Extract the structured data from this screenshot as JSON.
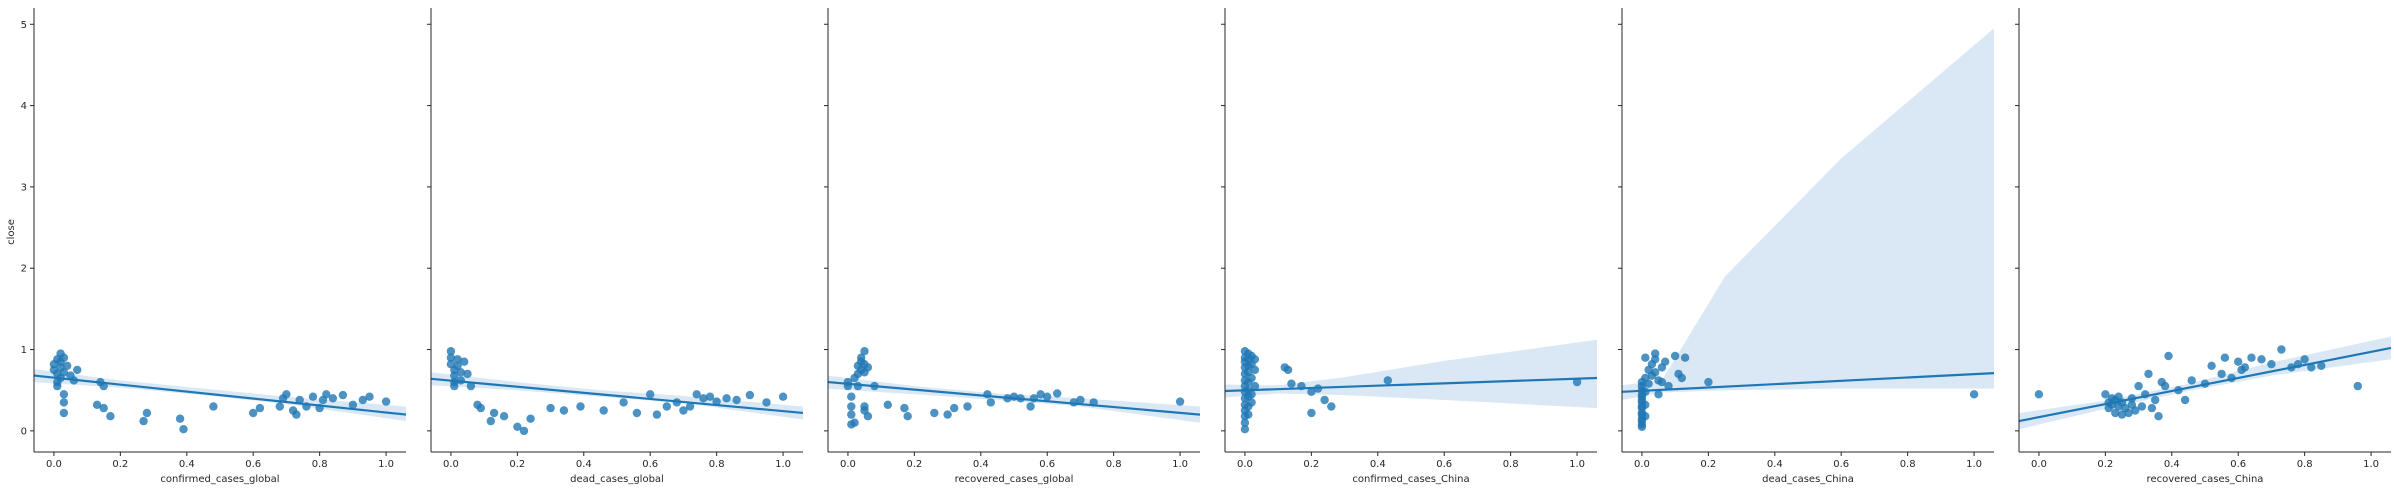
{
  "ylabel": "close",
  "colors": {
    "scatter": "#1f77b4",
    "line": "#1f77b4",
    "band": "#c6dbef"
  },
  "chart_data": [
    {
      "type": "scatter",
      "xlabel": "confirmed_cases_global",
      "xlim": [
        -0.06,
        1.06
      ],
      "ylim": [
        -0.26,
        5.2
      ],
      "xticks": [
        "0.0",
        "0.2",
        "0.4",
        "0.6",
        "0.8",
        "1.0"
      ],
      "yticks": [
        "0",
        "1",
        "2",
        "3",
        "4",
        "5"
      ],
      "points": [
        [
          0.0,
          0.82
        ],
        [
          0.0,
          0.75
        ],
        [
          0.01,
          0.88
        ],
        [
          0.01,
          0.7
        ],
        [
          0.01,
          0.6
        ],
        [
          0.01,
          0.55
        ],
        [
          0.02,
          0.95
        ],
        [
          0.02,
          0.85
        ],
        [
          0.02,
          0.78
        ],
        [
          0.02,
          0.65
        ],
        [
          0.03,
          0.9
        ],
        [
          0.03,
          0.72
        ],
        [
          0.03,
          0.45
        ],
        [
          0.03,
          0.35
        ],
        [
          0.03,
          0.22
        ],
        [
          0.04,
          0.8
        ],
        [
          0.05,
          0.68
        ],
        [
          0.06,
          0.62
        ],
        [
          0.07,
          0.75
        ],
        [
          0.14,
          0.6
        ],
        [
          0.15,
          0.55
        ],
        [
          0.13,
          0.32
        ],
        [
          0.15,
          0.28
        ],
        [
          0.17,
          0.18
        ],
        [
          0.27,
          0.12
        ],
        [
          0.28,
          0.22
        ],
        [
          0.38,
          0.15
        ],
        [
          0.39,
          0.02
        ],
        [
          0.48,
          0.3
        ],
        [
          0.6,
          0.22
        ],
        [
          0.62,
          0.28
        ],
        [
          0.68,
          0.3
        ],
        [
          0.69,
          0.4
        ],
        [
          0.7,
          0.45
        ],
        [
          0.72,
          0.25
        ],
        [
          0.73,
          0.2
        ],
        [
          0.74,
          0.38
        ],
        [
          0.76,
          0.3
        ],
        [
          0.78,
          0.42
        ],
        [
          0.8,
          0.28
        ],
        [
          0.81,
          0.38
        ],
        [
          0.82,
          0.45
        ],
        [
          0.84,
          0.4
        ],
        [
          0.87,
          0.44
        ],
        [
          0.9,
          0.32
        ],
        [
          0.93,
          0.38
        ],
        [
          0.95,
          0.42
        ],
        [
          1.0,
          0.36
        ]
      ],
      "regression": {
        "x": [
          -0.06,
          1.06
        ],
        "y": [
          0.68,
          0.2
        ]
      },
      "band": [
        [
          -0.06,
          0.6,
          0.76
        ],
        [
          0.2,
          0.53,
          0.62
        ],
        [
          0.45,
          0.44,
          0.52
        ],
        [
          0.7,
          0.33,
          0.42
        ],
        [
          1.06,
          0.12,
          0.3
        ]
      ]
    },
    {
      "type": "scatter",
      "xlabel": "dead_cases_global",
      "xlim": [
        -0.06,
        1.06
      ],
      "ylim": [
        -0.26,
        5.2
      ],
      "xticks": [
        "0.0",
        "0.2",
        "0.4",
        "0.6",
        "0.8",
        "1.0"
      ],
      "yticks": [
        "0",
        "1",
        "2",
        "3",
        "4",
        "5"
      ],
      "points": [
        [
          0.0,
          0.98
        ],
        [
          0.0,
          0.9
        ],
        [
          0.0,
          0.82
        ],
        [
          0.01,
          0.75
        ],
        [
          0.01,
          0.68
        ],
        [
          0.01,
          0.6
        ],
        [
          0.01,
          0.55
        ],
        [
          0.02,
          0.88
        ],
        [
          0.02,
          0.8
        ],
        [
          0.03,
          0.72
        ],
        [
          0.03,
          0.62
        ],
        [
          0.04,
          0.85
        ],
        [
          0.05,
          0.7
        ],
        [
          0.06,
          0.55
        ],
        [
          0.08,
          0.32
        ],
        [
          0.09,
          0.28
        ],
        [
          0.12,
          0.12
        ],
        [
          0.13,
          0.22
        ],
        [
          0.16,
          0.18
        ],
        [
          0.2,
          0.05
        ],
        [
          0.22,
          0.0
        ],
        [
          0.24,
          0.15
        ],
        [
          0.3,
          0.28
        ],
        [
          0.34,
          0.25
        ],
        [
          0.39,
          0.3
        ],
        [
          0.46,
          0.25
        ],
        [
          0.52,
          0.35
        ],
        [
          0.56,
          0.22
        ],
        [
          0.6,
          0.45
        ],
        [
          0.62,
          0.2
        ],
        [
          0.65,
          0.3
        ],
        [
          0.68,
          0.35
        ],
        [
          0.7,
          0.25
        ],
        [
          0.72,
          0.3
        ],
        [
          0.74,
          0.45
        ],
        [
          0.76,
          0.4
        ],
        [
          0.78,
          0.42
        ],
        [
          0.8,
          0.36
        ],
        [
          0.83,
          0.4
        ],
        [
          0.86,
          0.38
        ],
        [
          0.9,
          0.44
        ],
        [
          0.95,
          0.35
        ],
        [
          1.0,
          0.42
        ]
      ],
      "regression": {
        "x": [
          -0.06,
          1.06
        ],
        "y": [
          0.64,
          0.22
        ]
      },
      "band": [
        [
          -0.06,
          0.56,
          0.72
        ],
        [
          0.2,
          0.5,
          0.6
        ],
        [
          0.45,
          0.42,
          0.5
        ],
        [
          0.7,
          0.34,
          0.43
        ],
        [
          1.06,
          0.14,
          0.3
        ]
      ]
    },
    {
      "type": "scatter",
      "xlabel": "recovered_cases_global",
      "xlim": [
        -0.06,
        1.06
      ],
      "ylim": [
        -0.26,
        5.2
      ],
      "xticks": [
        "0.0",
        "0.2",
        "0.4",
        "0.6",
        "0.8",
        "1.0"
      ],
      "yticks": [
        "0",
        "1",
        "2",
        "3",
        "4",
        "5"
      ],
      "points": [
        [
          0.0,
          0.6
        ],
        [
          0.0,
          0.55
        ],
        [
          0.01,
          0.42
        ],
        [
          0.01,
          0.3
        ],
        [
          0.01,
          0.2
        ],
        [
          0.01,
          0.08
        ],
        [
          0.02,
          0.1
        ],
        [
          0.02,
          0.65
        ],
        [
          0.03,
          0.55
        ],
        [
          0.03,
          0.7
        ],
        [
          0.03,
          0.8
        ],
        [
          0.04,
          0.9
        ],
        [
          0.04,
          0.85
        ],
        [
          0.04,
          0.75
        ],
        [
          0.05,
          0.98
        ],
        [
          0.05,
          0.82
        ],
        [
          0.05,
          0.72
        ],
        [
          0.06,
          0.78
        ],
        [
          0.05,
          0.3
        ],
        [
          0.05,
          0.25
        ],
        [
          0.06,
          0.18
        ],
        [
          0.08,
          0.55
        ],
        [
          0.12,
          0.32
        ],
        [
          0.17,
          0.28
        ],
        [
          0.18,
          0.18
        ],
        [
          0.26,
          0.22
        ],
        [
          0.3,
          0.2
        ],
        [
          0.32,
          0.28
        ],
        [
          0.36,
          0.3
        ],
        [
          0.42,
          0.45
        ],
        [
          0.43,
          0.35
        ],
        [
          0.48,
          0.4
        ],
        [
          0.5,
          0.42
        ],
        [
          0.52,
          0.4
        ],
        [
          0.55,
          0.3
        ],
        [
          0.56,
          0.4
        ],
        [
          0.58,
          0.45
        ],
        [
          0.6,
          0.42
        ],
        [
          0.63,
          0.46
        ],
        [
          0.68,
          0.35
        ],
        [
          0.7,
          0.38
        ],
        [
          0.74,
          0.35
        ],
        [
          1.0,
          0.36
        ]
      ],
      "regression": {
        "x": [
          -0.06,
          1.06
        ],
        "y": [
          0.6,
          0.2
        ]
      },
      "band": [
        [
          -0.06,
          0.52,
          0.68
        ],
        [
          0.2,
          0.45,
          0.55
        ],
        [
          0.45,
          0.38,
          0.46
        ],
        [
          0.7,
          0.3,
          0.4
        ],
        [
          1.06,
          0.1,
          0.3
        ]
      ]
    },
    {
      "type": "scatter",
      "xlabel": "confirmed_cases_China",
      "xlim": [
        -0.06,
        1.06
      ],
      "ylim": [
        -0.26,
        5.2
      ],
      "xticks": [
        "0.0",
        "0.2",
        "0.4",
        "0.6",
        "0.8",
        "1.0"
      ],
      "yticks": [
        "0",
        "1",
        "2",
        "3",
        "4",
        "5"
      ],
      "points": [
        [
          0.0,
          0.98
        ],
        [
          0.0,
          0.9
        ],
        [
          0.0,
          0.85
        ],
        [
          0.0,
          0.78
        ],
        [
          0.0,
          0.7
        ],
        [
          0.0,
          0.62
        ],
        [
          0.0,
          0.55
        ],
        [
          0.0,
          0.48
        ],
        [
          0.0,
          0.4
        ],
        [
          0.0,
          0.32
        ],
        [
          0.0,
          0.25
        ],
        [
          0.0,
          0.18
        ],
        [
          0.0,
          0.1
        ],
        [
          0.0,
          0.02
        ],
        [
          0.01,
          0.95
        ],
        [
          0.01,
          0.88
        ],
        [
          0.01,
          0.8
        ],
        [
          0.01,
          0.72
        ],
        [
          0.01,
          0.6
        ],
        [
          0.01,
          0.5
        ],
        [
          0.01,
          0.42
        ],
        [
          0.01,
          0.3
        ],
        [
          0.01,
          0.2
        ],
        [
          0.02,
          0.92
        ],
        [
          0.02,
          0.82
        ],
        [
          0.02,
          0.65
        ],
        [
          0.02,
          0.45
        ],
        [
          0.02,
          0.35
        ],
        [
          0.03,
          0.88
        ],
        [
          0.03,
          0.75
        ],
        [
          0.03,
          0.55
        ],
        [
          0.12,
          0.78
        ],
        [
          0.13,
          0.75
        ],
        [
          0.14,
          0.58
        ],
        [
          0.17,
          0.55
        ],
        [
          0.2,
          0.48
        ],
        [
          0.2,
          0.22
        ],
        [
          0.22,
          0.52
        ],
        [
          0.24,
          0.38
        ],
        [
          0.26,
          0.3
        ],
        [
          0.43,
          0.62
        ],
        [
          1.0,
          0.6
        ]
      ],
      "regression": {
        "x": [
          -0.06,
          1.06
        ],
        "y": [
          0.49,
          0.65
        ]
      },
      "band": [
        [
          -0.06,
          0.41,
          0.57
        ],
        [
          0.1,
          0.46,
          0.56
        ],
        [
          0.3,
          0.44,
          0.66
        ],
        [
          0.6,
          0.38,
          0.86
        ],
        [
          1.06,
          0.28,
          1.12
        ]
      ]
    },
    {
      "type": "scatter",
      "xlabel": "dead_cases_China",
      "xlim": [
        -0.06,
        1.06
      ],
      "ylim": [
        -0.26,
        5.2
      ],
      "xticks": [
        "0.0",
        "0.2",
        "0.4",
        "0.6",
        "0.8",
        "1.0"
      ],
      "yticks": [
        "0",
        "1",
        "2",
        "3",
        "4",
        "5"
      ],
      "points": [
        [
          0.0,
          0.5
        ],
        [
          0.0,
          0.42
        ],
        [
          0.0,
          0.35
        ],
        [
          0.0,
          0.28
        ],
        [
          0.0,
          0.2
        ],
        [
          0.0,
          0.12
        ],
        [
          0.0,
          0.05
        ],
        [
          0.0,
          0.6
        ],
        [
          0.0,
          0.55
        ],
        [
          0.0,
          0.45
        ],
        [
          0.0,
          0.38
        ],
        [
          0.0,
          0.3
        ],
        [
          0.0,
          0.22
        ],
        [
          0.0,
          0.15
        ],
        [
          0.0,
          0.08
        ],
        [
          0.01,
          0.9
        ],
        [
          0.01,
          0.65
        ],
        [
          0.01,
          0.48
        ],
        [
          0.01,
          0.32
        ],
        [
          0.01,
          0.18
        ],
        [
          0.02,
          0.75
        ],
        [
          0.02,
          0.58
        ],
        [
          0.03,
          0.82
        ],
        [
          0.03,
          0.68
        ],
        [
          0.04,
          0.95
        ],
        [
          0.04,
          0.88
        ],
        [
          0.04,
          0.72
        ],
        [
          0.05,
          0.62
        ],
        [
          0.05,
          0.45
        ],
        [
          0.06,
          0.78
        ],
        [
          0.06,
          0.6
        ],
        [
          0.07,
          0.85
        ],
        [
          0.08,
          0.55
        ],
        [
          0.1,
          0.92
        ],
        [
          0.11,
          0.7
        ],
        [
          0.12,
          0.65
        ],
        [
          0.13,
          0.9
        ],
        [
          0.2,
          0.6
        ],
        [
          1.0,
          0.45
        ]
      ],
      "regression": {
        "x": [
          -0.06,
          1.06
        ],
        "y": [
          0.48,
          0.71
        ]
      },
      "band": [
        [
          -0.06,
          0.38,
          0.56
        ],
        [
          0.06,
          0.47,
          0.62
        ],
        [
          0.25,
          0.5,
          1.9
        ],
        [
          0.6,
          0.52,
          3.35
        ],
        [
          1.06,
          0.52,
          4.95
        ]
      ]
    },
    {
      "type": "scatter",
      "xlabel": "recovered_cases_China",
      "xlim": [
        -0.06,
        1.06
      ],
      "ylim": [
        -0.26,
        5.2
      ],
      "xticks": [
        "0.0",
        "0.2",
        "0.4",
        "0.6",
        "0.8",
        "1.0"
      ],
      "yticks": [
        "0",
        "1",
        "2",
        "3",
        "4",
        "5"
      ],
      "points": [
        [
          0.0,
          0.45
        ],
        [
          0.2,
          0.45
        ],
        [
          0.21,
          0.35
        ],
        [
          0.21,
          0.28
        ],
        [
          0.22,
          0.4
        ],
        [
          0.22,
          0.32
        ],
        [
          0.23,
          0.22
        ],
        [
          0.23,
          0.38
        ],
        [
          0.24,
          0.3
        ],
        [
          0.24,
          0.42
        ],
        [
          0.25,
          0.2
        ],
        [
          0.25,
          0.35
        ],
        [
          0.26,
          0.28
        ],
        [
          0.27,
          0.22
        ],
        [
          0.28,
          0.4
        ],
        [
          0.28,
          0.32
        ],
        [
          0.29,
          0.25
        ],
        [
          0.3,
          0.55
        ],
        [
          0.31,
          0.3
        ],
        [
          0.32,
          0.45
        ],
        [
          0.33,
          0.7
        ],
        [
          0.34,
          0.28
        ],
        [
          0.35,
          0.38
        ],
        [
          0.36,
          0.18
        ],
        [
          0.37,
          0.6
        ],
        [
          0.38,
          0.55
        ],
        [
          0.39,
          0.92
        ],
        [
          0.42,
          0.5
        ],
        [
          0.44,
          0.38
        ],
        [
          0.46,
          0.62
        ],
        [
          0.5,
          0.58
        ],
        [
          0.52,
          0.8
        ],
        [
          0.55,
          0.7
        ],
        [
          0.56,
          0.9
        ],
        [
          0.58,
          0.65
        ],
        [
          0.6,
          0.85
        ],
        [
          0.61,
          0.75
        ],
        [
          0.62,
          0.78
        ],
        [
          0.64,
          0.9
        ],
        [
          0.67,
          0.88
        ],
        [
          0.7,
          0.82
        ],
        [
          0.73,
          1.0
        ],
        [
          0.76,
          0.78
        ],
        [
          0.78,
          0.82
        ],
        [
          0.8,
          0.88
        ],
        [
          0.82,
          0.78
        ],
        [
          0.85,
          0.8
        ],
        [
          0.96,
          0.55
        ]
      ],
      "regression": {
        "x": [
          -0.06,
          1.06
        ],
        "y": [
          0.12,
          1.02
        ]
      },
      "band": [
        [
          -0.06,
          0.02,
          0.22
        ],
        [
          0.2,
          0.27,
          0.37
        ],
        [
          0.45,
          0.49,
          0.58
        ],
        [
          0.7,
          0.68,
          0.84
        ],
        [
          1.06,
          0.88,
          1.16
        ]
      ]
    }
  ]
}
